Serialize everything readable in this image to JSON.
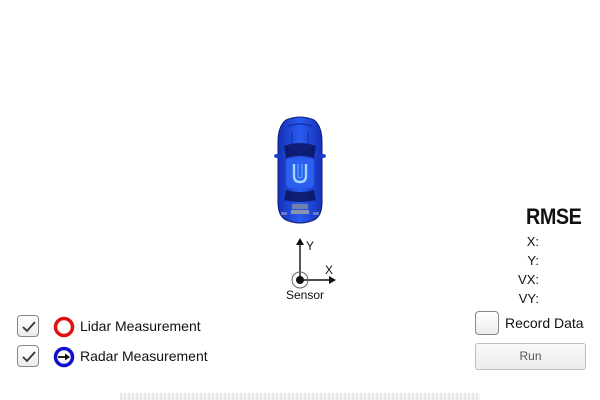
{
  "simulator": {
    "vehicle_icon": "car-top-view-icon",
    "vehicle_color": "#1f3fd8",
    "sensor": {
      "label": "Sensor",
      "axis_x_label": "X",
      "axis_y_label": "Y"
    }
  },
  "rmse": {
    "title": "RMSE",
    "x_label": "X:",
    "y_label": "Y:",
    "vx_label": "VX:",
    "vy_label": "VY:"
  },
  "legend": {
    "lidar": {
      "label": "Lidar Measurement",
      "checked": true,
      "color": "#e01010",
      "icon": "circle-icon"
    },
    "radar": {
      "label": "Radar Measurement",
      "checked": true,
      "color": "#1010d0",
      "icon": "arrow-circle-icon"
    }
  },
  "controls": {
    "record_label": "Record Data",
    "record_checked": false,
    "run_label": "Run"
  }
}
